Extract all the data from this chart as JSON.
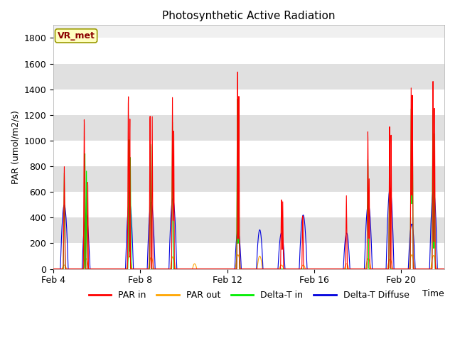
{
  "title": "Photosynthetic Active Radiation",
  "ylabel": "PAR (umol/m2/s)",
  "xlabel": "Time",
  "ylim": [
    0,
    1900
  ],
  "yticks": [
    0,
    200,
    400,
    600,
    800,
    1000,
    1200,
    1400,
    1600,
    1800
  ],
  "xtick_positions": [
    0,
    4,
    8,
    12,
    16
  ],
  "xtick_labels": [
    "Feb 4",
    "Feb 8",
    "Feb 12",
    "Feb 16",
    "Feb 20"
  ],
  "xlim": [
    0,
    18
  ],
  "colors": {
    "PAR_in": "#ff0000",
    "PAR_out": "#ffa500",
    "Delta_T_in": "#00ee00",
    "Delta_T_Diffuse": "#0000dd"
  },
  "legend_labels": [
    "PAR in",
    "PAR out",
    "Delta-T in",
    "Delta-T Diffuse"
  ],
  "plot_bg": "#f0f0f0",
  "fig_bg": "#ffffff",
  "annotation_text": "VR_met",
  "annotation_box_color": "#ffffc0",
  "annotation_border_color": "#999900",
  "title_fontsize": 11,
  "axis_fontsize": 9,
  "legend_fontsize": 9
}
